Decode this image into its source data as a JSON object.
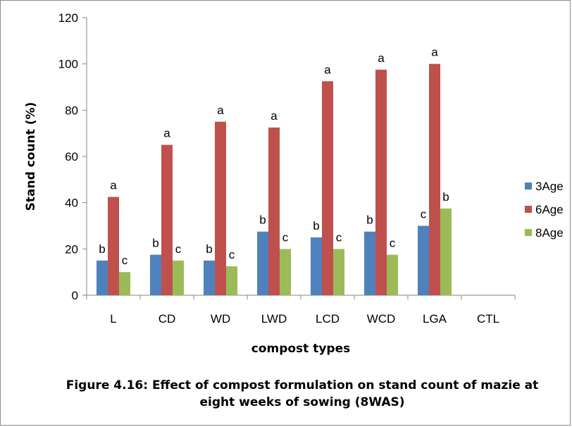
{
  "chart_data": {
    "type": "bar",
    "categories": [
      "L",
      "CD",
      "WD",
      "LWD",
      "LCD",
      "WCD",
      "LGA",
      "CTL"
    ],
    "series": [
      {
        "name": "3Age",
        "color": "#4f81bd",
        "values": [
          15,
          17.5,
          15,
          27.5,
          25,
          27.5,
          30,
          0
        ],
        "labels": [
          "b",
          "b",
          "b",
          "b",
          "b",
          "b",
          "c",
          ""
        ]
      },
      {
        "name": "6Age",
        "color": "#c0504d",
        "values": [
          42.5,
          65,
          75,
          72.5,
          92.5,
          97.5,
          100,
          0
        ],
        "labels": [
          "a",
          "a",
          "a",
          "a",
          "a",
          "a",
          "a",
          ""
        ]
      },
      {
        "name": "8Age",
        "color": "#9bbb59",
        "values": [
          10,
          15,
          12.5,
          20,
          20,
          17.5,
          37.5,
          0
        ],
        "labels": [
          "c",
          "c",
          "c",
          "c",
          "c",
          "c",
          "b",
          ""
        ]
      }
    ],
    "xlabel": "compost types",
    "ylabel": "Stand count (%)",
    "ylim": [
      0,
      120
    ],
    "yticks": [
      0,
      20,
      40,
      60,
      80,
      100,
      120
    ],
    "legend_position": "right",
    "grid": false,
    "caption_lines": [
      "Figure 4.16: Effect of compost formulation on stand count of mazie at",
      "eight weeks of sowing (8WAS)"
    ]
  }
}
